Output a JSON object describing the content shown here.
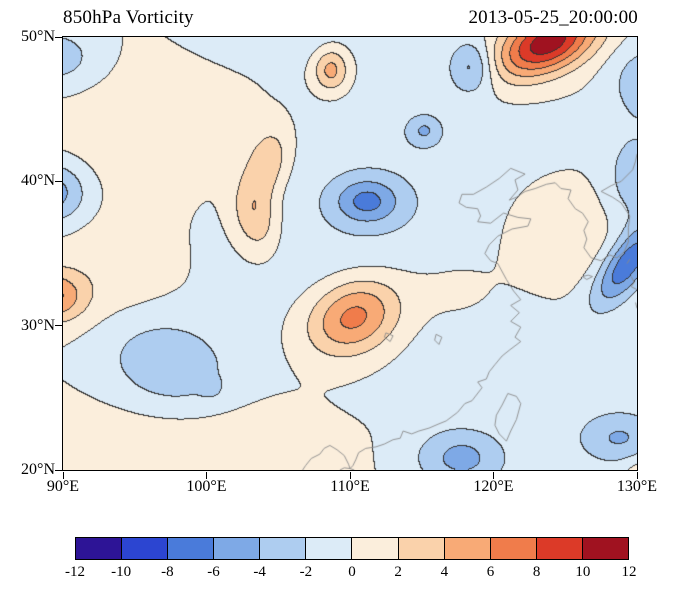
{
  "header": {
    "title": "850hPa Vorticity",
    "timestamp": "2013-05-25_20:00:00"
  },
  "chart_data": {
    "type": "filled_contour_map",
    "title": "850hPa Vorticity",
    "timestamp": "2013-05-25_20:00:00",
    "variable": "vorticity",
    "pressure_level": "850hPa",
    "contour_interval": 2,
    "x_axis": {
      "min": 90,
      "max": 130,
      "ticks": [
        90,
        100,
        110,
        120,
        130
      ],
      "tick_labels": [
        "90°E",
        "100°E",
        "110°E",
        "120°E",
        "130°E"
      ]
    },
    "y_axis": {
      "min": 20,
      "max": 50,
      "ticks": [
        50,
        40,
        30,
        20
      ],
      "tick_labels": [
        "50°N",
        "40°N",
        "30°N",
        "20°N"
      ]
    },
    "colorbar": {
      "orientation": "horizontal",
      "levels": [
        -12,
        -10,
        -8,
        -6,
        -4,
        -2,
        0,
        2,
        4,
        6,
        8,
        10,
        12
      ],
      "tick_labels": [
        "-12",
        "-10",
        "-8",
        "-6",
        "-4",
        "-2",
        "0",
        "2",
        "4",
        "6",
        "8",
        "10",
        "12"
      ],
      "colors": [
        "#2d1496",
        "#2c45d1",
        "#4a7bda",
        "#7ea9e6",
        "#aecdf0",
        "#dcebf7",
        "#fbeedc",
        "#fad2ab",
        "#f8aa76",
        "#f07c4b",
        "#dc3a28",
        "#a01220"
      ]
    },
    "contour_line_color": "#333333",
    "coast_color": "#8a8a8a",
    "field_model": {
      "blob_format": [
        "lon",
        "lat",
        "amplitude",
        "sigma_lon",
        "sigma_lat",
        "rotation_deg"
      ],
      "blobs": [
        [
          123.8,
          49.6,
          11.5,
          2.6,
          1.4,
          25
        ],
        [
          118.5,
          47.9,
          -4.6,
          1.1,
          1.3,
          0
        ],
        [
          130.6,
          46.8,
          -3.6,
          1.6,
          1.8,
          0
        ],
        [
          89.5,
          48.5,
          -3.4,
          2.4,
          1.6,
          0
        ],
        [
          108.7,
          47.7,
          5.2,
          0.85,
          1.05,
          0
        ],
        [
          89.3,
          39.2,
          -5.4,
          1.7,
          1.5,
          0
        ],
        [
          104.3,
          41.3,
          3.9,
          1.0,
          1.7,
          -15
        ],
        [
          103.4,
          37.6,
          4.3,
          1.1,
          1.9,
          10
        ],
        [
          111.2,
          38.6,
          -5.2,
          1.6,
          1.1,
          0
        ],
        [
          115.2,
          43.5,
          -3.3,
          0.85,
          0.75,
          0
        ],
        [
          110.3,
          30.6,
          7.6,
          2.4,
          1.8,
          25
        ],
        [
          89.2,
          32.0,
          6.2,
          1.6,
          1.2,
          0
        ],
        [
          97.3,
          27.2,
          -3.8,
          3.2,
          2.3,
          -20
        ],
        [
          100.3,
          25.7,
          -2.0,
          0.5,
          0.45,
          0
        ],
        [
          117.8,
          20.8,
          -4.6,
          2.3,
          1.5,
          0
        ],
        [
          129.3,
          34.2,
          -7.4,
          2.4,
          1.0,
          55
        ],
        [
          129.8,
          40.3,
          -3.2,
          1.3,
          2.2,
          0
        ],
        [
          128.8,
          22.2,
          -4.2,
          2.2,
          1.4,
          0
        ],
        [
          130.8,
          19.6,
          2.6,
          1.2,
          1.0,
          0
        ],
        [
          96.0,
          44.0,
          1.4,
          6.0,
          4.0,
          0
        ],
        [
          99.0,
          21.3,
          1.7,
          6.5,
          2.8,
          0
        ],
        [
          112.0,
          37.0,
          -1.7,
          8.0,
          7.0,
          0
        ],
        [
          124.3,
          36.3,
          2.3,
          2.6,
          2.4,
          0
        ],
        [
          93.5,
          33.5,
          1.3,
          3.5,
          2.8,
          0
        ],
        [
          104.0,
          50.8,
          -1.8,
          4.0,
          1.8,
          0
        ],
        [
          117.0,
          32.8,
          1.3,
          2.6,
          2.0,
          0
        ]
      ]
    },
    "coastlines": [
      [
        [
          124.3,
          39.9
        ],
        [
          123.7,
          39.8
        ],
        [
          122.9,
          39.5
        ],
        [
          122.2,
          39.3
        ],
        [
          121.6,
          38.9
        ],
        [
          121.1,
          38.7
        ],
        [
          121.7,
          39.4
        ],
        [
          121.5,
          40.1
        ],
        [
          122.2,
          40.5
        ],
        [
          121.2,
          40.9
        ],
        [
          120.4,
          40.2
        ],
        [
          119.5,
          39.6
        ],
        [
          118.6,
          39.1
        ],
        [
          117.8,
          39.1
        ],
        [
          117.6,
          38.5
        ],
        [
          118.1,
          38.2
        ],
        [
          118.9,
          38.1
        ],
        [
          119.1,
          37.6
        ],
        [
          118.9,
          37.2
        ],
        [
          119.8,
          37.1
        ],
        [
          120.7,
          37.8
        ],
        [
          121.7,
          37.5
        ],
        [
          122.6,
          37.4
        ],
        [
          122.4,
          36.9
        ],
        [
          121.3,
          36.7
        ],
        [
          120.3,
          36.2
        ],
        [
          119.7,
          35.6
        ],
        [
          119.4,
          35.0
        ],
        [
          119.8,
          34.5
        ],
        [
          120.3,
          34.3
        ],
        [
          120.9,
          33.2
        ],
        [
          121.4,
          32.4
        ],
        [
          121.9,
          31.8
        ],
        [
          121.2,
          31.4
        ],
        [
          121.8,
          30.9
        ],
        [
          121.2,
          30.3
        ],
        [
          121.9,
          29.9
        ],
        [
          121.5,
          29.2
        ],
        [
          121.9,
          28.9
        ],
        [
          121.1,
          28.3
        ],
        [
          120.6,
          27.9
        ],
        [
          120.1,
          27.3
        ],
        [
          119.7,
          26.8
        ],
        [
          119.5,
          26.3
        ],
        [
          118.9,
          26.1
        ],
        [
          119.2,
          25.7
        ],
        [
          118.5,
          24.8
        ],
        [
          118.0,
          24.6
        ],
        [
          117.5,
          24.0
        ],
        [
          116.7,
          23.4
        ],
        [
          116.2,
          23.2
        ],
        [
          115.5,
          22.9
        ],
        [
          114.8,
          22.7
        ],
        [
          114.3,
          22.5
        ],
        [
          113.7,
          22.7
        ],
        [
          113.5,
          22.2
        ],
        [
          113.0,
          22.1
        ],
        [
          112.4,
          21.8
        ],
        [
          111.8,
          21.6
        ],
        [
          111.1,
          21.5
        ],
        [
          110.6,
          21.2
        ],
        [
          110.4,
          20.7
        ],
        [
          110.2,
          20.3
        ],
        [
          110.0,
          20.1
        ],
        [
          109.9,
          20.4
        ],
        [
          109.6,
          21.0
        ],
        [
          109.1,
          21.4
        ],
        [
          108.6,
          21.7
        ],
        [
          108.2,
          21.5
        ],
        [
          107.9,
          21.1
        ],
        [
          107.3,
          20.8
        ],
        [
          106.9,
          20.3
        ],
        [
          106.7,
          20.0
        ]
      ],
      [
        [
          124.3,
          39.9
        ],
        [
          124.7,
          39.5
        ],
        [
          125.4,
          39.4
        ],
        [
          125.2,
          38.8
        ],
        [
          125.7,
          38.1
        ],
        [
          126.2,
          37.8
        ],
        [
          126.6,
          37.2
        ],
        [
          126.3,
          36.6
        ],
        [
          126.5,
          36.0
        ],
        [
          126.3,
          35.4
        ],
        [
          126.8,
          34.7
        ],
        [
          127.5,
          34.5
        ],
        [
          128.1,
          34.9
        ],
        [
          128.6,
          34.7
        ],
        [
          129.1,
          35.1
        ],
        [
          129.4,
          35.8
        ],
        [
          129.4,
          36.8
        ],
        [
          129.5,
          37.6
        ],
        [
          128.9,
          38.5
        ],
        [
          128.3,
          38.9
        ],
        [
          127.5,
          39.3
        ],
        [
          128.2,
          39.7
        ],
        [
          128.9,
          40.0
        ],
        [
          129.7,
          40.8
        ],
        [
          129.9,
          41.4
        ],
        [
          130.0,
          41.9
        ]
      ],
      [
        [
          121.0,
          25.3
        ],
        [
          121.6,
          25.1
        ],
        [
          121.9,
          24.6
        ],
        [
          121.6,
          23.5
        ],
        [
          121.2,
          22.7
        ],
        [
          120.9,
          22.0
        ],
        [
          120.4,
          22.5
        ],
        [
          120.1,
          23.1
        ],
        [
          120.2,
          23.8
        ],
        [
          120.6,
          24.5
        ],
        [
          121.0,
          25.3
        ]
      ],
      [
        [
          109.3,
          20.0
        ],
        [
          109.6,
          20.15
        ],
        [
          110.0,
          20.1
        ],
        [
          110.3,
          20.0
        ]
      ],
      [
        [
          129.6,
          33.4
        ],
        [
          129.8,
          33.0
        ],
        [
          129.6,
          32.7
        ],
        [
          130.0,
          32.5
        ]
      ],
      [
        [
          129.9,
          31.6
        ],
        [
          130.0,
          31.2
        ]
      ],
      [
        [
          129.3,
          34.3
        ],
        [
          129.5,
          34.6
        ]
      ],
      [
        [
          126.2,
          33.4
        ],
        [
          126.6,
          33.5
        ],
        [
          126.9,
          33.4
        ],
        [
          126.5,
          33.2
        ],
        [
          126.2,
          33.4
        ]
      ],
      [
        [
          112.5,
          29.5
        ],
        [
          113.0,
          29.3
        ],
        [
          112.8,
          28.9
        ],
        [
          112.4,
          29.2
        ],
        [
          112.5,
          29.5
        ]
      ],
      [
        [
          116.0,
          29.4
        ],
        [
          116.4,
          29.2
        ],
        [
          116.2,
          28.7
        ],
        [
          115.9,
          29.0
        ],
        [
          116.0,
          29.4
        ]
      ]
    ]
  }
}
